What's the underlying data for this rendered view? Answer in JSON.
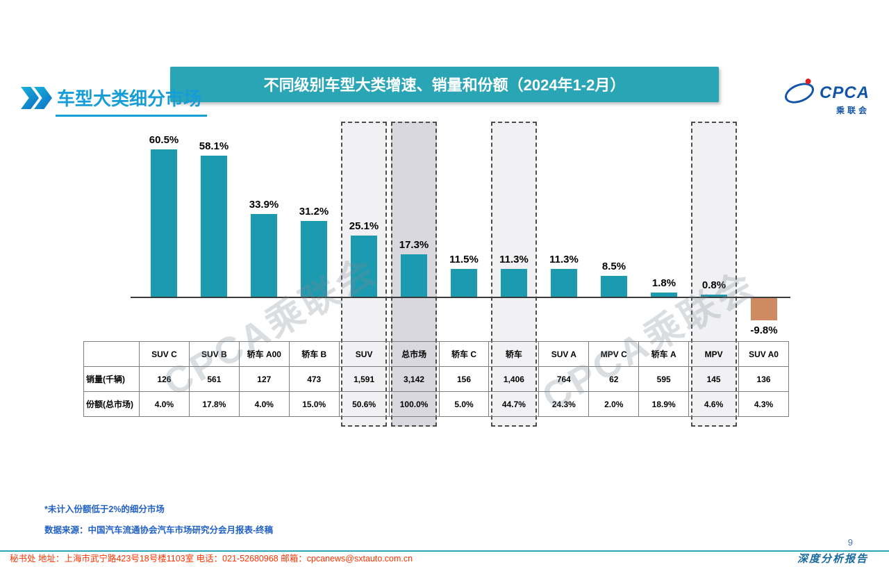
{
  "page": {
    "title": "车型大类细分市场",
    "page_number": "9",
    "report_label": "深度分析报告",
    "watermark": "CPCA乘联会",
    "notes": [
      "*未计入份额低于2%的细分市场",
      "数据来源：中国汽车流通协会汽车市场研究分会月报表-终稿"
    ],
    "footer": "秘书处   地址：上海市武宁路423号18号楼1103室   电话：021-52680968    邮箱：cpcanews@sxtauto.com.cn"
  },
  "logo": {
    "text": "CPCA",
    "subtext": "乘联会"
  },
  "colors": {
    "accent_teal": "#29a5b6",
    "title_blue": "#169dd6",
    "note_blue": "#2160c4",
    "footer_red": "#ff3300",
    "highlight_light": "#f1f1f4",
    "highlight_dark": "#d8d8de"
  },
  "chart_data": {
    "type": "bar",
    "title": "不同级别车型大类增速、销量和份额（2024年1-2月）",
    "categories": [
      "SUV C",
      "SUV B",
      "轿车 A00",
      "轿车 B",
      "SUV",
      "总市场",
      "轿车 C",
      "轿车",
      "SUV A",
      "MPV C",
      "轿车 A",
      "MPV",
      "SUV A0"
    ],
    "values": [
      60.5,
      58.1,
      33.9,
      31.2,
      25.1,
      17.3,
      11.5,
      11.3,
      11.3,
      8.5,
      1.8,
      0.8,
      -9.8
    ],
    "labels": [
      "60.5%",
      "58.1%",
      "33.9%",
      "31.2%",
      "25.1%",
      "17.3%",
      "11.5%",
      "11.3%",
      "11.3%",
      "8.5%",
      "1.8%",
      "0.8%",
      "-9.8%"
    ],
    "highlighted": [
      4,
      5,
      7,
      11
    ],
    "bar_color": "#1c9aaf",
    "negative_bar_color": "#d08a62",
    "ylim": [
      -15,
      70
    ],
    "xlabel": "",
    "ylabel": "",
    "table": {
      "row_labels": [
        "销量(千辆)",
        "份额(总市场)"
      ],
      "sales": [
        "126",
        "561",
        "127",
        "473",
        "1,591",
        "3,142",
        "156",
        "1,406",
        "764",
        "62",
        "595",
        "145",
        "136"
      ],
      "share": [
        "4.0%",
        "17.8%",
        "4.0%",
        "15.0%",
        "50.6%",
        "100.0%",
        "5.0%",
        "44.7%",
        "24.3%",
        "2.0%",
        "18.9%",
        "4.6%",
        "4.3%"
      ]
    }
  }
}
